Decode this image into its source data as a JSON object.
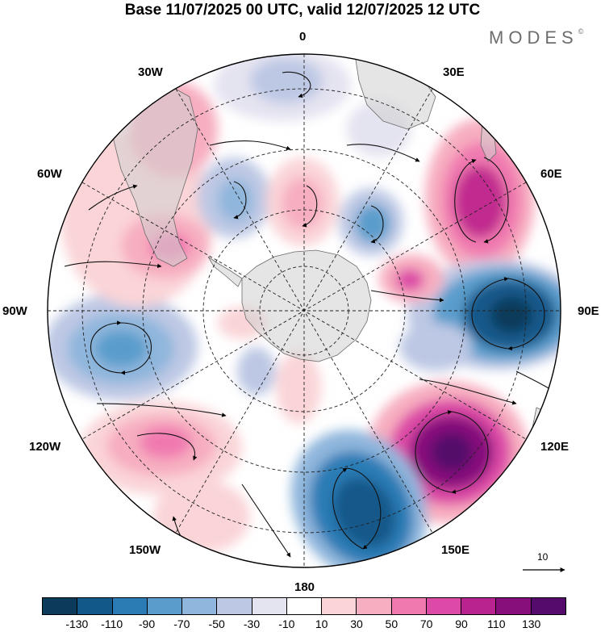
{
  "title": "Base 11/07/2025 00 UTC, valid 12/07/2025 12 UTC",
  "brand": {
    "name": "MODES",
    "mark": "©"
  },
  "longitude_labels": {
    "lon_0": "0",
    "lon_30e": "30E",
    "lon_60e": "60E",
    "lon_90e": "90E",
    "lon_120e": "120E",
    "lon_150e": "150E",
    "lon_180": "180",
    "lon_150w": "150W",
    "lon_120w": "120W",
    "lon_90w": "90W",
    "lon_60w": "60W",
    "lon_30w": "30W"
  },
  "reference_vector": {
    "label": "10"
  },
  "colorbar": {
    "ticks": [
      "-130",
      "-110",
      "-90",
      "-70",
      "-50",
      "-30",
      "-10",
      "10",
      "30",
      "50",
      "70",
      "90",
      "110",
      "130"
    ],
    "colors": [
      "#0c3a5a",
      "#12598a",
      "#2b7bb5",
      "#5a9dcc",
      "#8fb6dc",
      "#bdc8e4",
      "#e4e3f0",
      "#ffffff",
      "#fad4d7",
      "#f7aec0",
      "#f07ab0",
      "#dc49a6",
      "#b8238f",
      "#860f7c",
      "#540b6b"
    ]
  },
  "anomaly_centers": [
    {
      "name": "hi-60e",
      "value": 95,
      "color": "#c1298f"
    },
    {
      "name": "lo-90e",
      "value": -130,
      "color": "#1b4f79"
    },
    {
      "name": "hi-120e",
      "value": 130,
      "color": "#6b0f77"
    },
    {
      "name": "lo-150e",
      "value": -120,
      "color": "#1d5c8e"
    },
    {
      "name": "hi-120w",
      "value": 55,
      "color": "#ec8fb8"
    },
    {
      "name": "lo-90w",
      "value": -55,
      "color": "#8ab2d8"
    },
    {
      "name": "hi-60w",
      "value": 60,
      "color": "#e08db5"
    },
    {
      "name": "hi-30w",
      "value": 30,
      "color": "#f6c8cf"
    },
    {
      "name": "lo-0",
      "value": -35,
      "color": "#bcc9e5"
    },
    {
      "name": "lo-45w-inner",
      "value": -35,
      "color": "#b3c5e2"
    },
    {
      "name": "hi-15w-inner",
      "value": 45,
      "color": "#ee9cc0"
    },
    {
      "name": "lo-30e-inner",
      "value": -50,
      "color": "#8fb1d9"
    },
    {
      "name": "hi-60e-inner",
      "value": 50,
      "color": "#ee95bf"
    }
  ]
}
